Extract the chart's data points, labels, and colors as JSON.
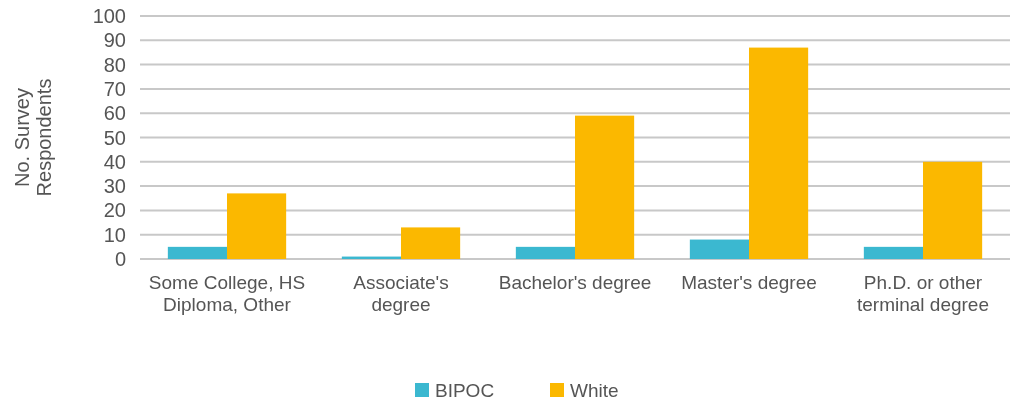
{
  "chart_data": {
    "type": "bar",
    "ylabel": "No. Survey Respondents",
    "categories": [
      "Some College, HS Diploma, Other",
      "Associate's degree",
      "Bachelor's degree",
      "Master's degree",
      "Ph.D. or other terminal degree"
    ],
    "series": [
      {
        "name": "BIPOC",
        "color": "#3bb8d0",
        "values": [
          5,
          1,
          5,
          8,
          5
        ]
      },
      {
        "name": "White",
        "color": "#fbb800",
        "values": [
          27,
          13,
          59,
          87,
          40
        ]
      }
    ],
    "ylim": [
      0,
      100
    ],
    "yticks": [
      0,
      10,
      20,
      30,
      40,
      50,
      60,
      70,
      80,
      90,
      100
    ],
    "grid": "y",
    "legend": "bottom"
  }
}
